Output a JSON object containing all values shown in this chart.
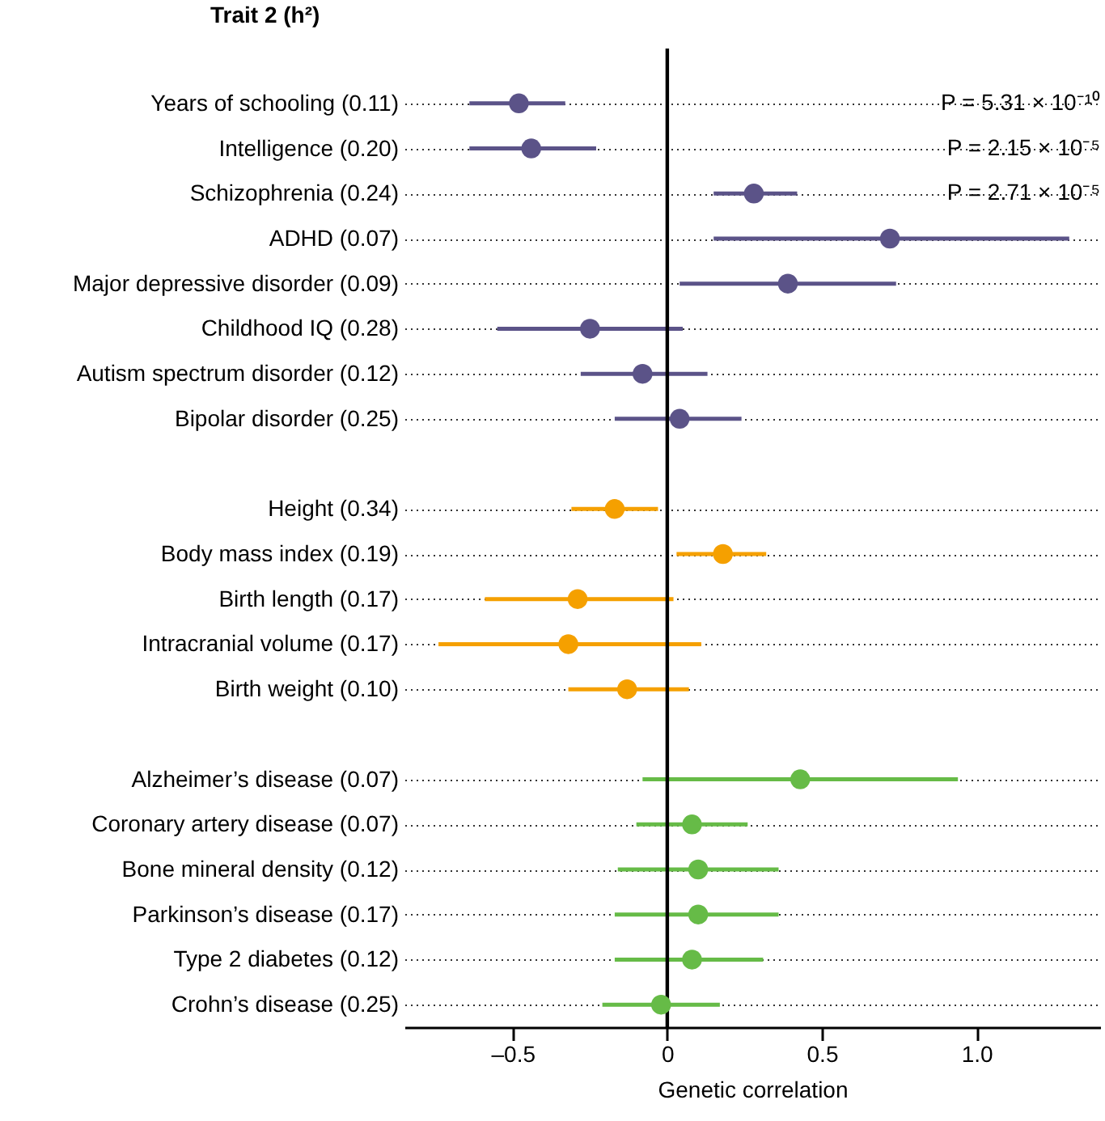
{
  "chart_data": {
    "type": "scatter",
    "title": "Trait 2 (h²)",
    "xlabel": "Genetic correlation",
    "categories": [
      "Years of schooling (0.11)",
      "Intelligence (0.20)",
      "Schizophrenia (0.24)",
      "ADHD (0.07)",
      "Major depressive disorder (0.09)",
      "Childhood IQ (0.28)",
      "Autism spectrum disorder (0.12)",
      "Bipolar disorder (0.25)",
      null,
      "Height (0.34)",
      "Body mass index (0.19)",
      "Birth length (0.17)",
      "Intracranial volume (0.17)",
      "Birth weight (0.10)",
      null,
      "Alzheimer’s disease (0.07)",
      "Coronary artery disease (0.07)",
      "Bone mineral density (0.12)",
      "Parkinson’s disease (0.17)",
      "Type 2 diabetes (0.12)",
      "Crohn’s disease (0.25)"
    ],
    "orientation": "horizontal",
    "series": [
      {
        "color": "#5b5388",
        "values": [
          -0.48,
          -0.44,
          0.28,
          0.72,
          0.39,
          -0.25,
          -0.08,
          0.04,
          null,
          null,
          null,
          null,
          null,
          null,
          null,
          null,
          null,
          null,
          null,
          null,
          null
        ],
        "errors": [
          [
            -0.64,
            -0.33
          ],
          [
            -0.64,
            -0.23
          ],
          [
            0.15,
            0.42
          ],
          [
            0.15,
            1.3
          ],
          [
            0.04,
            0.74
          ],
          [
            -0.55,
            0.05
          ],
          [
            -0.28,
            0.13
          ],
          [
            -0.17,
            0.24
          ],
          null,
          null,
          null,
          null,
          null,
          null,
          null,
          null,
          null,
          null,
          null,
          null,
          null
        ]
      },
      {
        "color": "#f5a000",
        "values": [
          null,
          null,
          null,
          null,
          null,
          null,
          null,
          null,
          null,
          -0.17,
          0.18,
          -0.29,
          -0.32,
          -0.13,
          null,
          null,
          null,
          null,
          null,
          null,
          null
        ],
        "errors": [
          null,
          null,
          null,
          null,
          null,
          null,
          null,
          null,
          null,
          [
            -0.31,
            -0.03
          ],
          [
            0.03,
            0.32
          ],
          [
            -0.59,
            0.02
          ],
          [
            -0.74,
            0.11
          ],
          [
            -0.32,
            0.07
          ],
          null,
          null,
          null,
          null,
          null,
          null,
          null
        ]
      },
      {
        "color": "#66bb47",
        "values": [
          null,
          null,
          null,
          null,
          null,
          null,
          null,
          null,
          null,
          null,
          null,
          null,
          null,
          null,
          null,
          0.43,
          0.08,
          0.1,
          0.1,
          0.08,
          -0.02
        ],
        "errors": [
          null,
          null,
          null,
          null,
          null,
          null,
          null,
          null,
          null,
          null,
          null,
          null,
          null,
          null,
          null,
          [
            -0.08,
            0.94
          ],
          [
            -0.1,
            0.26
          ],
          [
            -0.16,
            0.36
          ],
          [
            -0.17,
            0.36
          ],
          [
            -0.17,
            0.31
          ],
          [
            -0.21,
            0.17
          ]
        ]
      }
    ],
    "xlim": [
      -0.85,
      1.4
    ],
    "xticks": [
      {
        "value": -0.5,
        "label": "–0.5"
      },
      0,
      0.5,
      {
        "value": 1,
        "label": "1.0"
      }
    ],
    "ref_lines": [
      {
        "axis": "x",
        "value": 0,
        "color": "#000000"
      }
    ],
    "annotations": [
      "P = 5.31 × 10⁻¹⁰",
      "P = 2.15 × 10⁻⁵",
      "P = 2.71 × 10⁻⁵"
    ],
    "grid": "y",
    "marker": "circle",
    "legend": false
  }
}
